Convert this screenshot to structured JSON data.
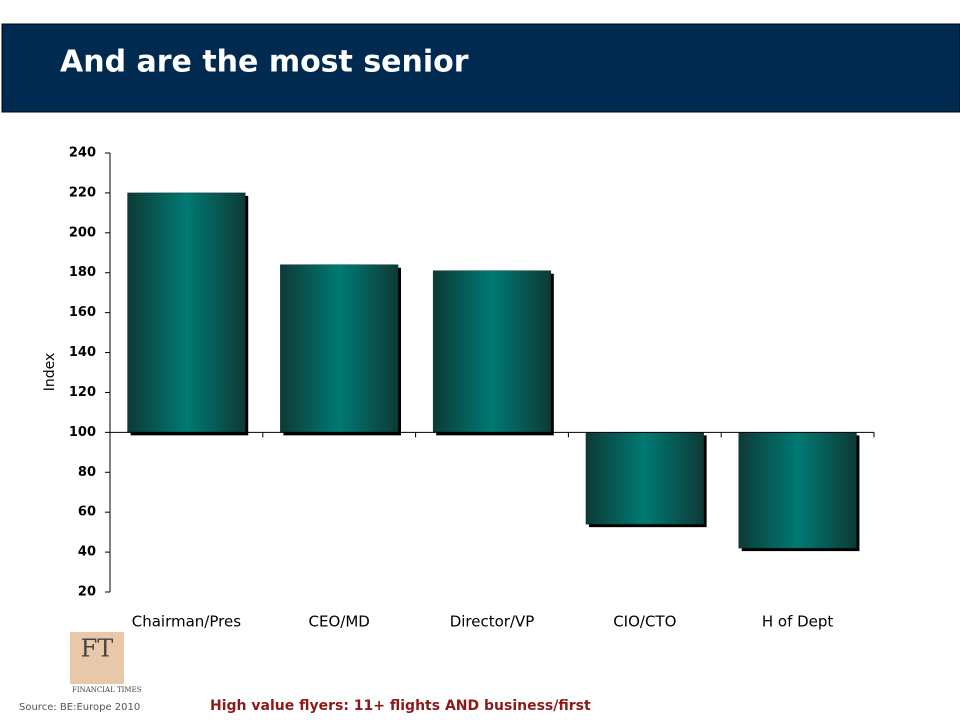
{
  "chart_data": {
    "type": "bar",
    "title": "And are the most senior",
    "y_label": "Index",
    "categories": [
      "Chairman/Pres",
      "CEO/MD",
      "Director/VP",
      "CIO/CTO",
      "H of Dept"
    ],
    "values": [
      220,
      184,
      181,
      54,
      42
    ],
    "color": "#007a74",
    "baseline": 100,
    "ylim": [
      20,
      240
    ],
    "yticks": [
      20,
      40,
      60,
      80,
      100,
      120,
      140,
      160,
      180,
      200,
      220,
      240
    ],
    "grid": false,
    "source": "Source: BE:Europe 2010",
    "note": "High value flyers: 11+ flights AND business/first"
  },
  "logo": {
    "mark": "FT",
    "name": "FINANCIAL TIMES"
  }
}
